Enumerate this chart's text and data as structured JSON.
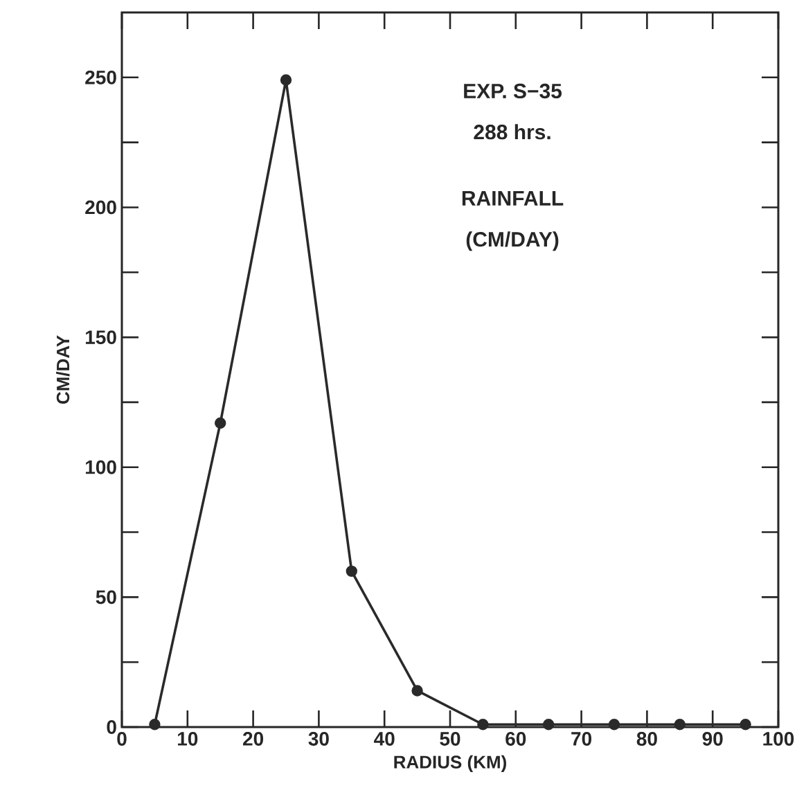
{
  "chart_data": {
    "type": "line",
    "xlabel": "RADIUS  (KM)",
    "ylabel": "CM/DAY",
    "annotations": [
      "EXP.  S−35",
      "288 hrs.",
      "RAINFALL",
      "(CM/DAY)"
    ],
    "x": [
      5,
      15,
      25,
      35,
      45,
      55,
      65,
      75,
      85,
      95
    ],
    "series": [
      {
        "color": "#2a2a2a",
        "values": [
          1,
          117,
          249,
          60,
          14,
          1,
          1,
          1,
          1,
          1
        ]
      }
    ],
    "xlim": [
      0,
      100
    ],
    "xticks": [
      0,
      10,
      20,
      30,
      40,
      50,
      60,
      70,
      80,
      90,
      100
    ],
    "ylim": [
      0,
      275
    ],
    "yticks": [
      0,
      {
        "value": 25,
        "label": null
      },
      50,
      {
        "value": 75,
        "label": null
      },
      100,
      {
        "value": 125,
        "label": null
      },
      150,
      {
        "value": 175,
        "label": null
      },
      200,
      {
        "value": 225,
        "label": null
      },
      250
    ],
    "marker": "circle",
    "line_style": "solid",
    "grid": false
  }
}
